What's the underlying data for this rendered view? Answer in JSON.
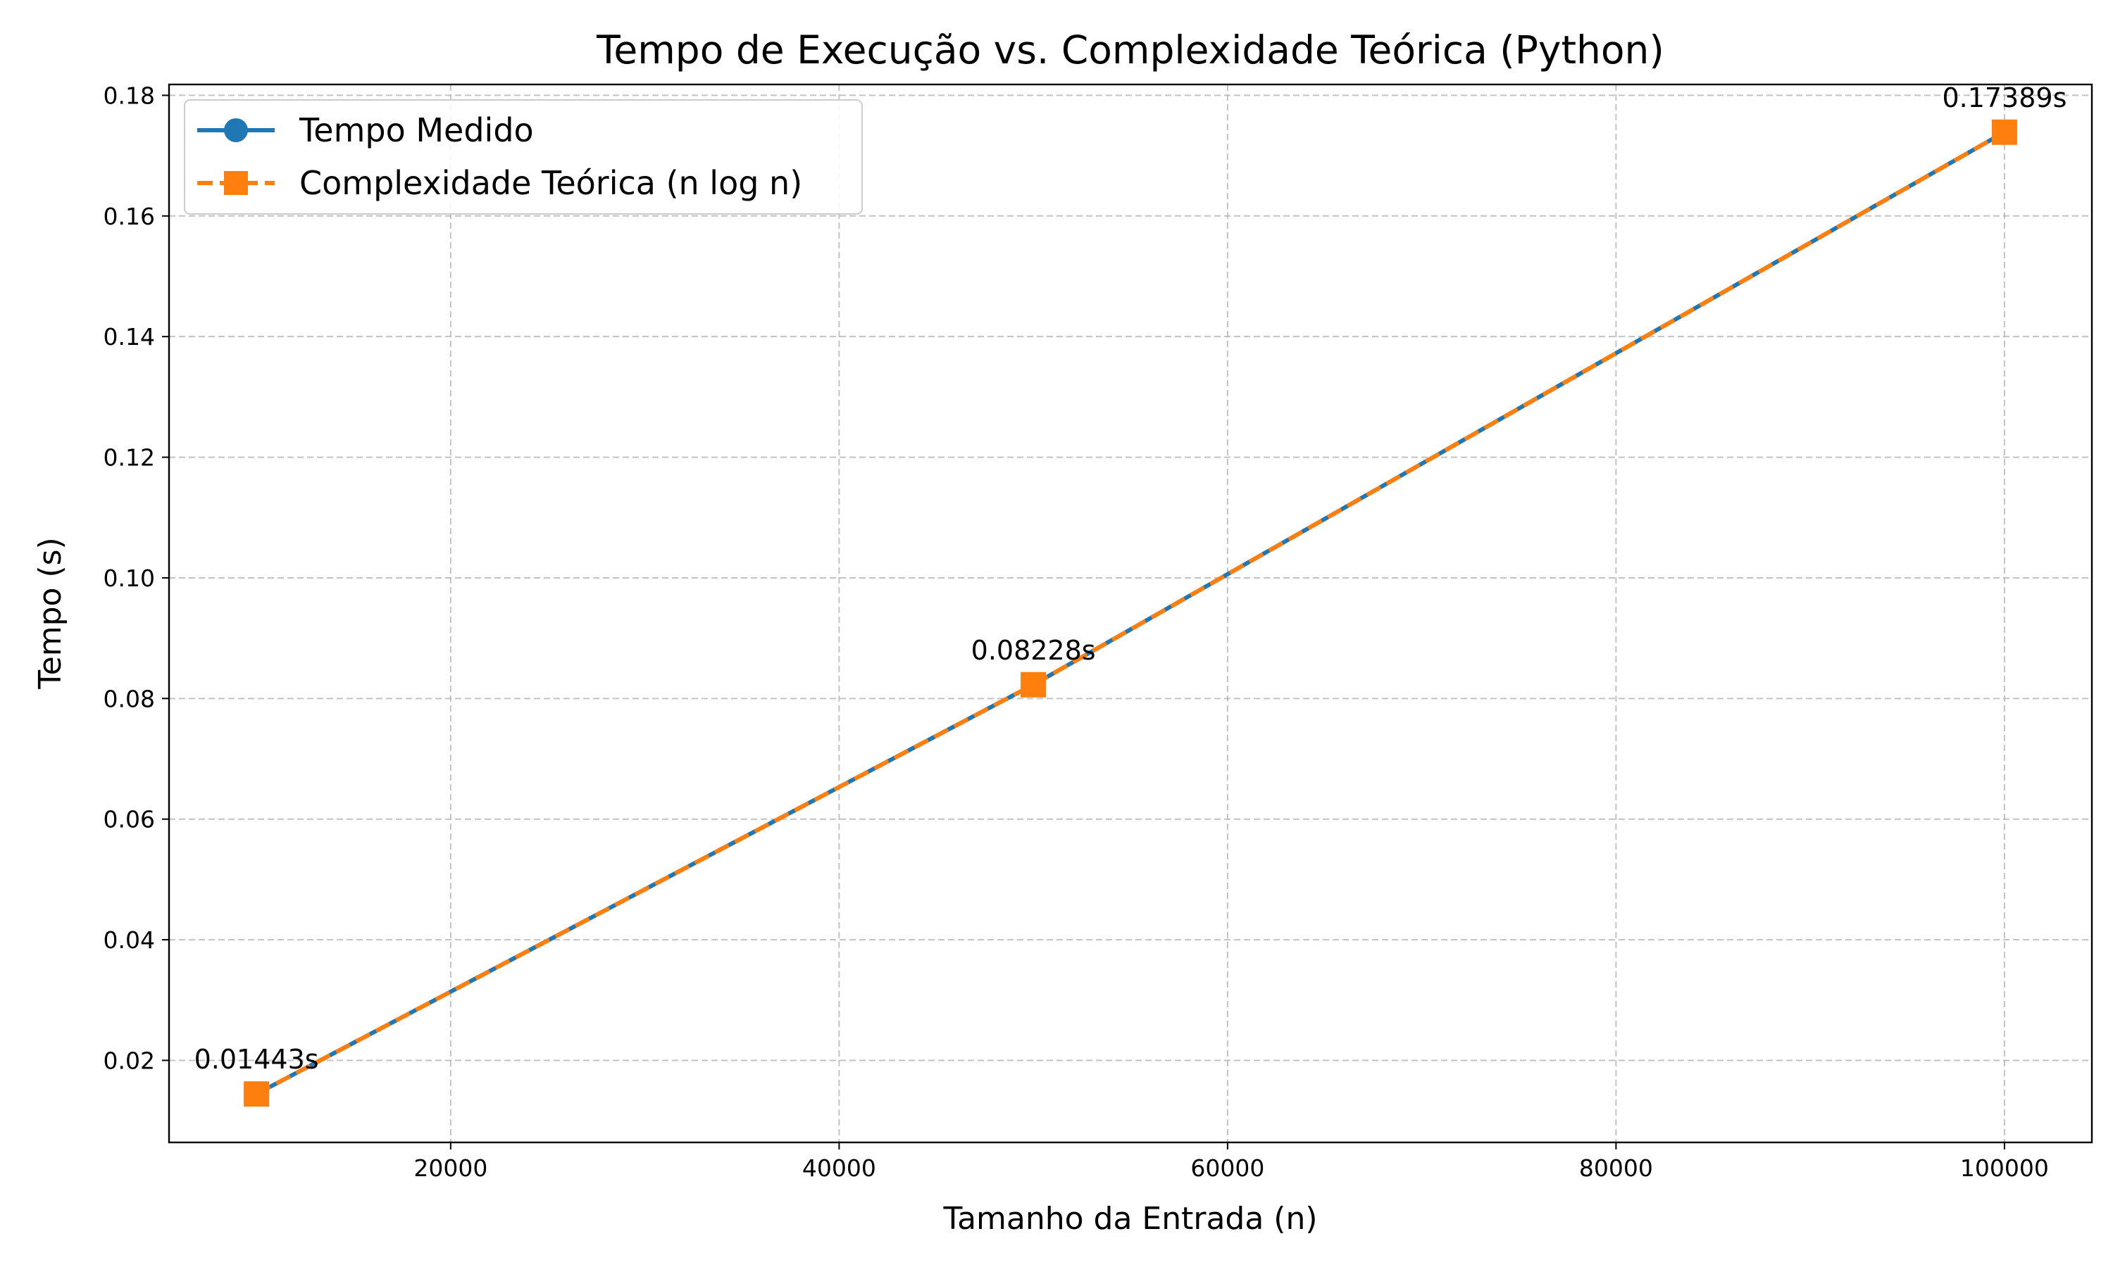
{
  "chart_data": {
    "type": "line",
    "title": "Tempo de Execução vs. Complexidade Teórica (Python)",
    "xlabel": "Tamanho da Entrada (n)",
    "ylabel": "Tempo (s)",
    "xlim": [
      5500,
      104500
    ],
    "ylim": [
      0.0064,
      0.1818
    ],
    "xticks": [
      20000,
      40000,
      60000,
      80000,
      100000
    ],
    "yticks": [
      0.02,
      0.04,
      0.06,
      0.08,
      0.1,
      0.12,
      0.14,
      0.16,
      0.18
    ],
    "grid": true,
    "legend_position": "top-left",
    "x": [
      10000,
      50000,
      100000
    ],
    "series": [
      {
        "name": "Tempo Medido",
        "values": [
          0.01443,
          0.08228,
          0.17389
        ],
        "color": "#1f77b4",
        "marker": "circle",
        "line_style": "solid"
      },
      {
        "name": "Complexidade Teórica (n log n)",
        "values": [
          0.01443,
          0.08228,
          0.17389
        ],
        "color": "#ff7f0e",
        "marker": "square",
        "line_style": "dashed"
      }
    ],
    "annotations": [
      "0.01443s",
      "0.08228s",
      "0.17389s"
    ]
  }
}
